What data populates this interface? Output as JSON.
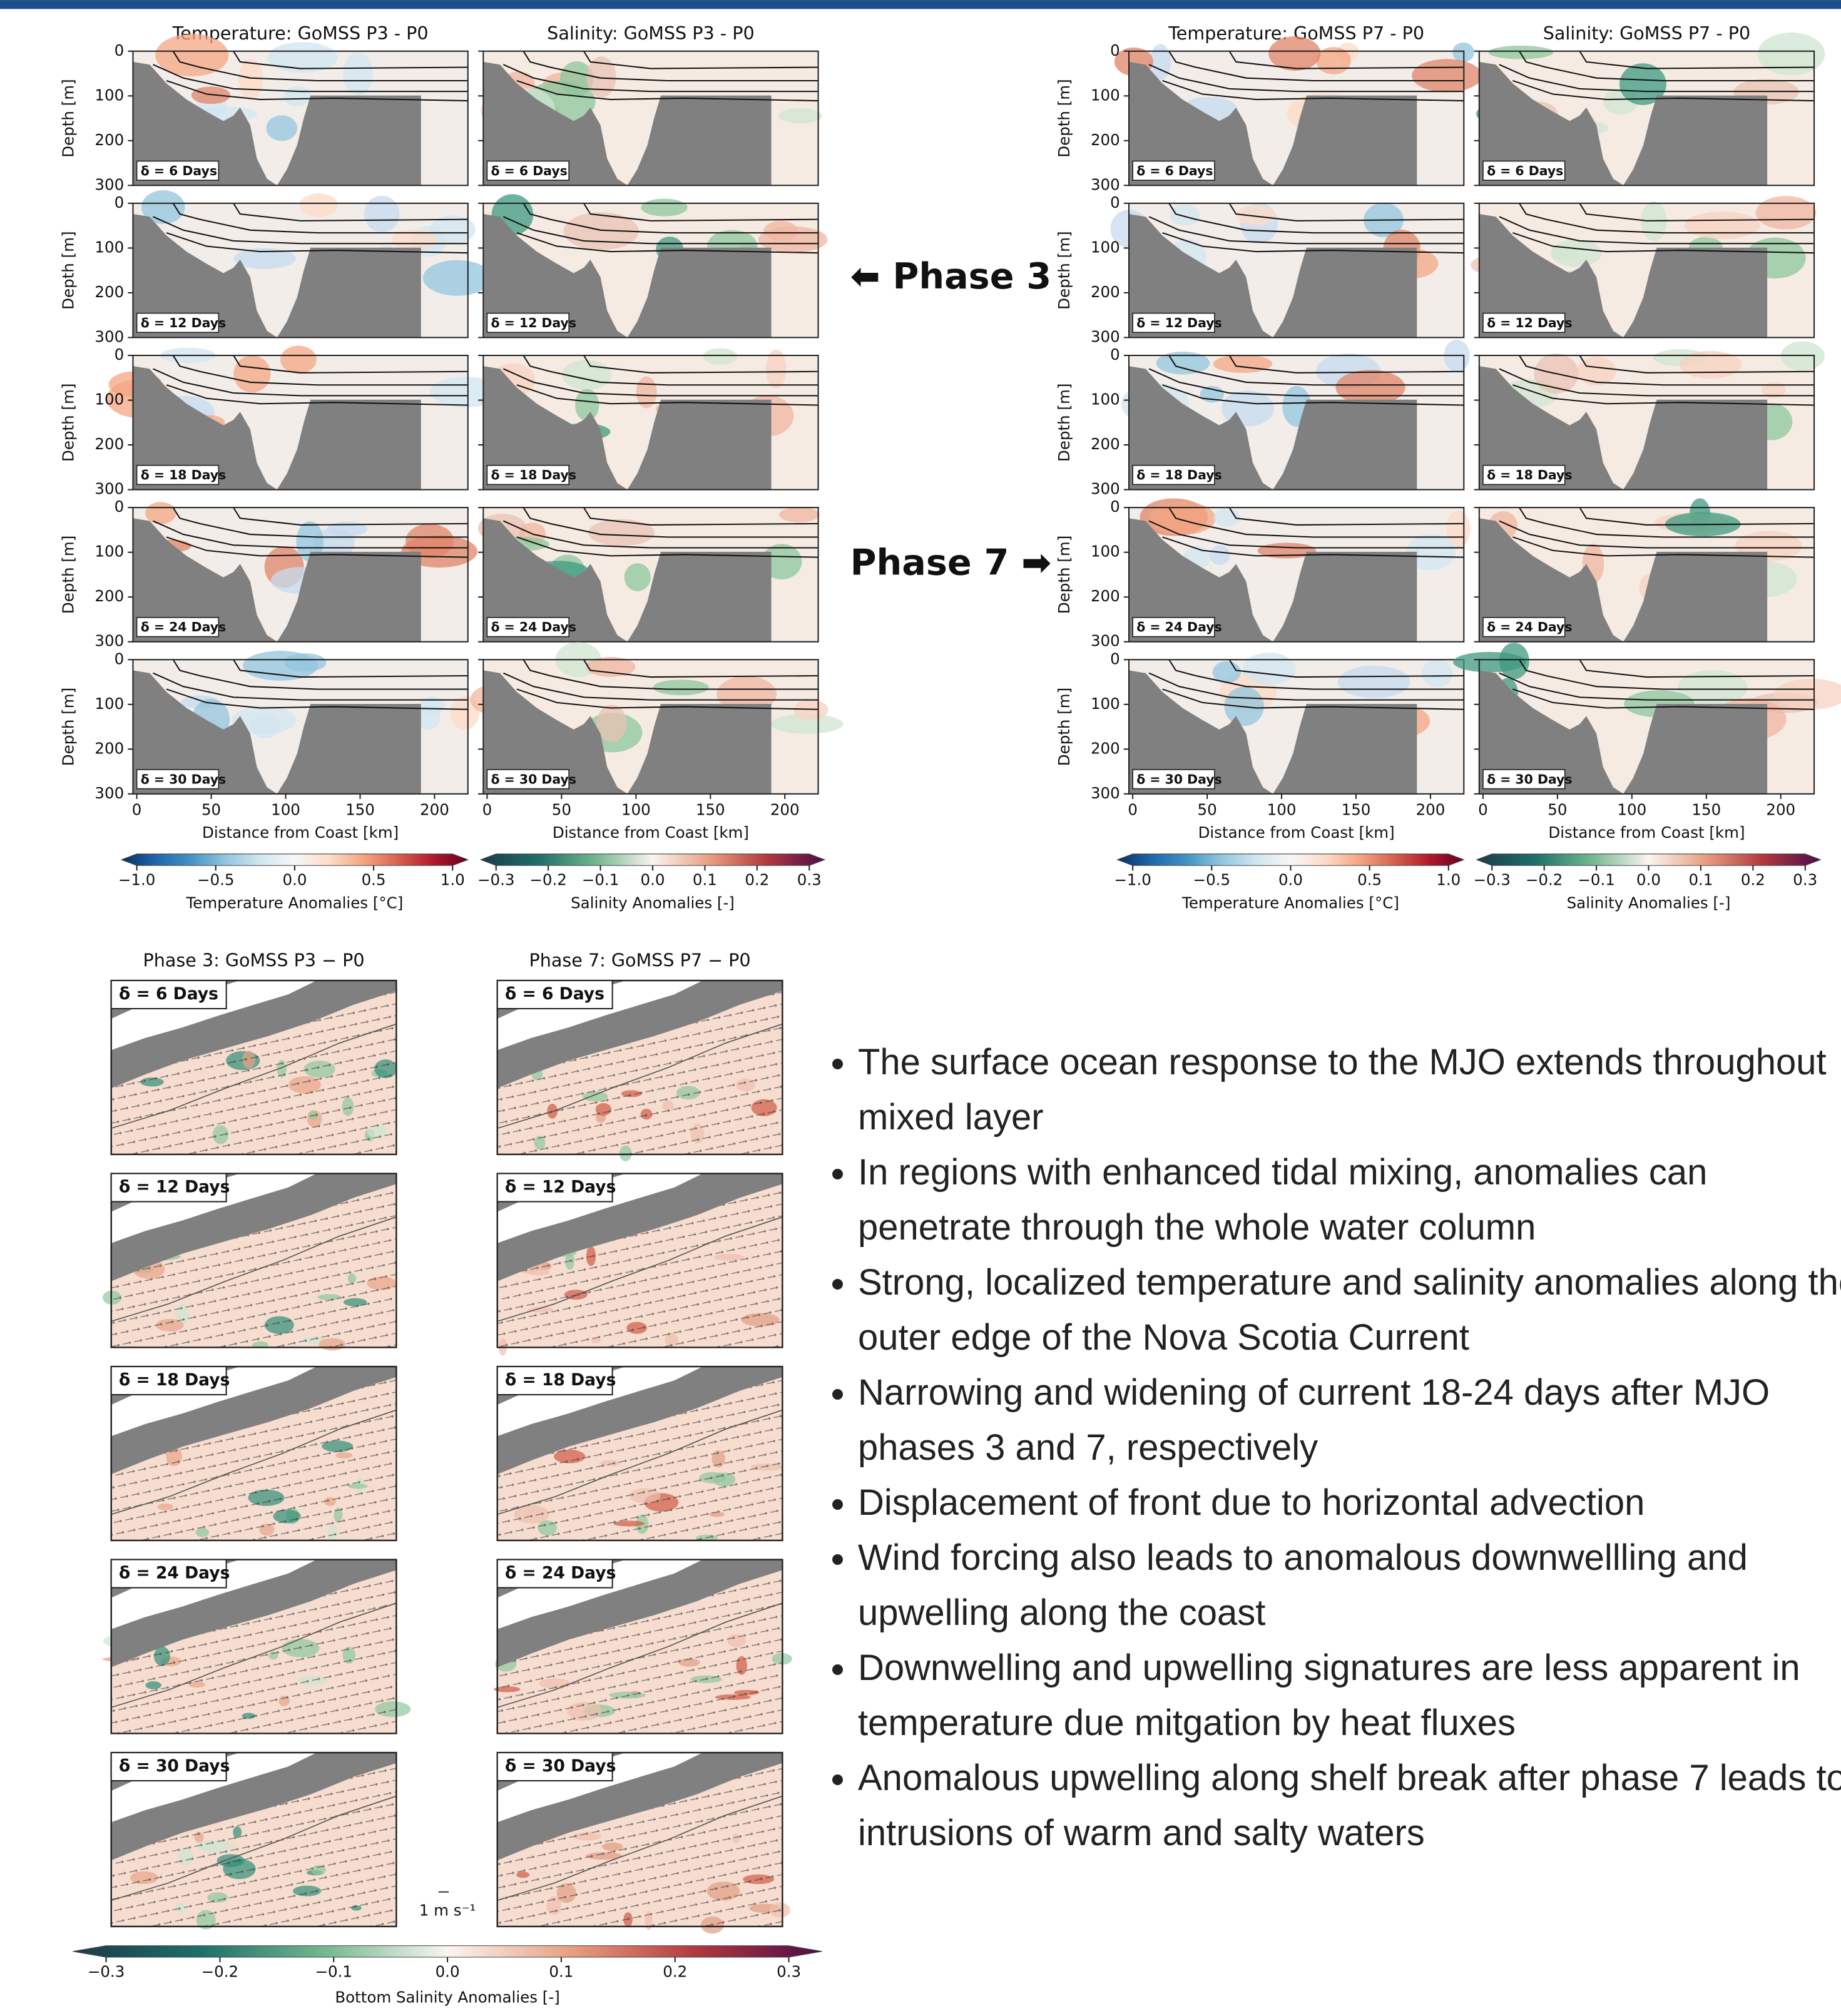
{
  "cross_sections": {
    "groups": [
      {
        "titles": [
          "Temperature: GoMSS P3 - P0",
          "Salinity: GoMSS P3 - P0"
        ]
      },
      {
        "titles": [
          "Temperature: GoMSS P7 - P0",
          "Salinity: GoMSS P7 - P0"
        ]
      }
    ],
    "lags": [
      "δ = 6 Days",
      "δ = 12 Days",
      "δ = 18 Days",
      "δ = 24 Days",
      "δ = 30 Days"
    ],
    "depth_axis": {
      "label": "Depth [m]",
      "lim": [
        0,
        300
      ],
      "ticks": [
        0,
        100,
        200,
        300
      ]
    },
    "distance_axis": {
      "label": "Distance from Coast [km]",
      "lim": [
        0,
        225
      ],
      "ticks": [
        0,
        50,
        100,
        150,
        200
      ]
    },
    "temperature_colorbar": {
      "label": "Temperature Anomalies [°C]",
      "lim": [
        -1,
        1
      ],
      "ticks": [
        {
          "value": -1,
          "label": "−1.0"
        },
        {
          "value": -0.5,
          "label": "−0.5"
        },
        {
          "value": 0,
          "label": "0.0"
        },
        0.5,
        {
          "value": 1,
          "label": "1.0"
        }
      ]
    },
    "salinity_colorbar": {
      "label": "Salinity Anomalies [-]",
      "lim": [
        -0.3,
        0.3
      ],
      "ticks": [
        {
          "value": -0.3,
          "label": "−0.3"
        },
        {
          "value": -0.2,
          "label": "−0.2"
        },
        {
          "value": -0.1,
          "label": "−0.1"
        },
        {
          "value": 0,
          "label": "0.0"
        },
        0.1,
        0.2,
        0.3
      ]
    }
  },
  "phase_labels": [
    "⬅ Phase 3",
    "Phase 7 ➡"
  ],
  "maps": {
    "titles": [
      "Phase 3: GoMSS P3 − P0",
      "Phase 7: GoMSS P7 − P0"
    ],
    "lags": [
      "δ =  6 Days",
      "δ =  12 Days",
      "δ =  18 Days",
      "δ =  24 Days",
      "δ =  30 Days"
    ],
    "scale_label": "1 m s⁻¹",
    "colorbar": {
      "label": "Bottom Salinity Anomalies [-]",
      "lim": [
        -0.3,
        0.3
      ],
      "ticks": [
        {
          "value": -0.3,
          "label": "−0.3"
        },
        {
          "value": -0.2,
          "label": "−0.2"
        },
        {
          "value": -0.1,
          "label": "−0.1"
        },
        {
          "value": 0,
          "label": "0.0"
        },
        0.1,
        0.2,
        0.3
      ]
    }
  },
  "bullets": [
    "The surface ocean response to the MJO extends throughout mixed layer",
    "In regions with enhanced tidal mixing, anomalies can penetrate through the whole water column",
    "Strong, localized temperature and salinity anomalies along the outer edge of the Nova Scotia Current",
    "Narrowing and widening of current 18-24 days after MJO phases 3 and 7, respectively",
    "Displacement of front due to horizontal advection",
    "Wind forcing also leads to anomalous downwellling and upwelling along the coast",
    "Downwelling and upwelling signatures are less apparent in temperature due mitgation by heat fluxes",
    "Anomalous upwelling along shelf break after phase 7 leads to intrusions of warm and salty waters"
  ]
}
